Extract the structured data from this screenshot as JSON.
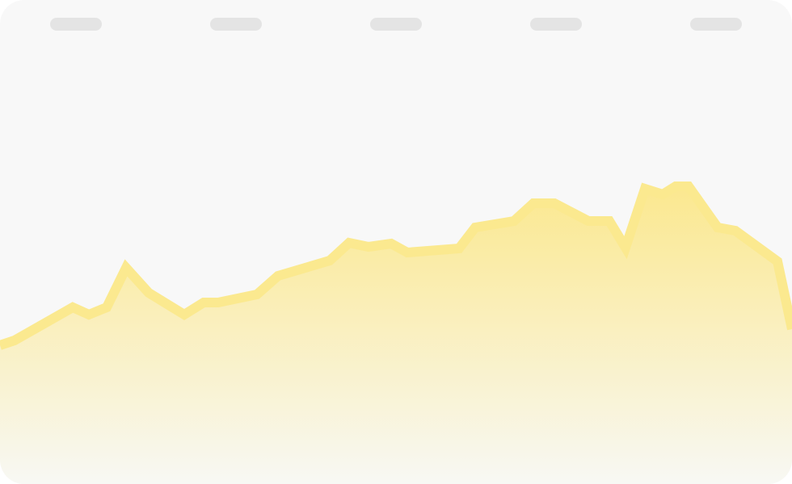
{
  "colors": {
    "card_background": "#f8f8f8",
    "placeholder_pill": "#e4e4e4",
    "line": "#fbe98f",
    "fill_top": "#fbe88f",
    "fill_bottom": "#f8f8f4"
  },
  "placeholders": {
    "count": 5
  },
  "chart_data": {
    "type": "area",
    "title": "",
    "xlabel": "",
    "ylabel": "",
    "grid": false,
    "legend": "none",
    "ylim": [
      0,
      600
    ],
    "x": [
      0,
      18,
      90,
      110,
      132,
      156,
      184,
      228,
      252,
      270,
      318,
      344,
      408,
      432,
      456,
      484,
      504,
      568,
      588,
      636,
      660,
      686,
      728,
      754,
      774,
      798,
      820,
      836,
      852,
      888,
      910,
      962,
      980
    ],
    "series": [
      {
        "values": [
          172,
          178,
          219,
          210,
          219,
          268,
          237,
          210,
          225,
          225,
          235,
          258,
          277,
          299,
          294,
          298,
          287,
          292,
          318,
          326,
          348,
          348,
          326,
          326,
          293,
          366,
          359,
          369,
          369,
          318,
          314,
          276,
          192
        ]
      }
    ]
  }
}
